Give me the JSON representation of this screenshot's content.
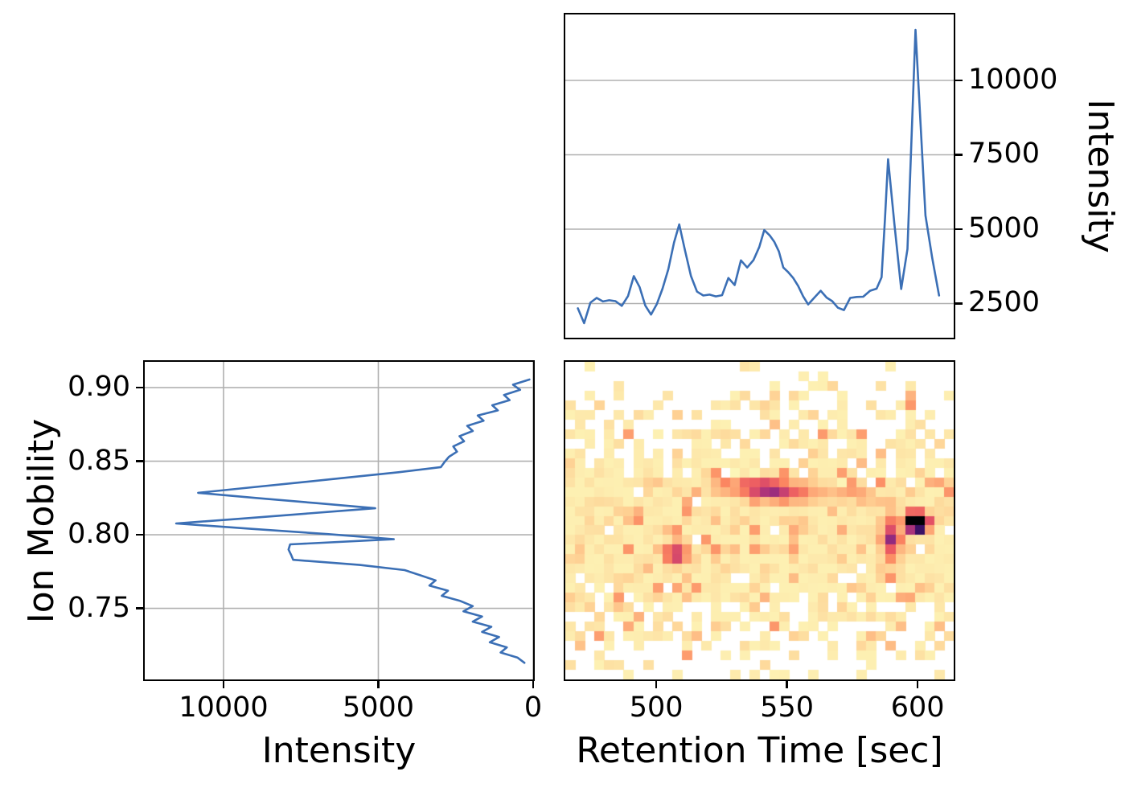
{
  "figure": {
    "background": "#ffffff",
    "line_color": "#3b6fb5",
    "grid_color": "#b0b0b0",
    "frame_color": "#000000",
    "tick_color": "#000000"
  },
  "chart_data": [
    {
      "id": "xic",
      "type": "line",
      "ylabel": "Intensity",
      "ylabel_side": "right",
      "grid": "horizontal",
      "legend": "none",
      "xlim": [
        465.2,
        613.8
      ],
      "ylim": [
        1351,
        12216
      ],
      "yticks": [
        2500,
        5000,
        7500,
        10000
      ],
      "ytick_labels": [
        "2500",
        "5000",
        "7500",
        "10000"
      ],
      "x": [
        470.0,
        472.4,
        474.8,
        477.2,
        479.6,
        482.0,
        484.4,
        486.8,
        489.2,
        491.4,
        493.6,
        495.8,
        498.0,
        500.2,
        502.4,
        504.6,
        506.8,
        508.8,
        511.0,
        513.3,
        515.6,
        518.0,
        520.4,
        522.8,
        525.2,
        527.6,
        530.0,
        532.4,
        534.8,
        537.2,
        539.4,
        541.3,
        543.4,
        545.2,
        546.9,
        548.6,
        550.5,
        552.4,
        554.3,
        556.2,
        558.1,
        560.4,
        562.9,
        565.2,
        567.3,
        569.5,
        571.8,
        574.2,
        576.7,
        579.2,
        581.8,
        584.3,
        586.2,
        587.5,
        588.7,
        591.1,
        593.7,
        596.1,
        599.2,
        603.0,
        605.6,
        608.2
      ],
      "y": [
        2340,
        1840,
        2530,
        2690,
        2570,
        2610,
        2580,
        2420,
        2750,
        3420,
        3060,
        2430,
        2130,
        2480,
        3000,
        3650,
        4550,
        5160,
        4280,
        3420,
        2900,
        2770,
        2800,
        2740,
        2780,
        3360,
        3120,
        3950,
        3710,
        3960,
        4400,
        4970,
        4790,
        4570,
        4250,
        3710,
        3550,
        3360,
        3090,
        2740,
        2470,
        2690,
        2930,
        2700,
        2580,
        2360,
        2280,
        2690,
        2720,
        2730,
        2930,
        3000,
        3380,
        5330,
        7350,
        5190,
        2990,
        4330,
        11700,
        5460,
        4030,
        2770
      ]
    },
    {
      "id": "mobilogram",
      "type": "line",
      "xlabel": "Intensity",
      "ylabel": "Ion Mobility",
      "grid": "both",
      "legend": "none",
      "xlim": [
        12545,
        0
      ],
      "ylim": [
        0.7017,
        0.9175
      ],
      "xticks": [
        10000,
        5000,
        0
      ],
      "xtick_labels": [
        "10000",
        "5000",
        "0"
      ],
      "yticks": [
        0.75,
        0.8,
        0.85,
        0.9
      ],
      "ytick_labels": [
        "0.75",
        "0.80",
        "0.85",
        "0.90"
      ],
      "x": [
        120,
        650,
        420,
        940,
        760,
        1320,
        1140,
        1790,
        1600,
        2130,
        1950,
        2380,
        2230,
        2580,
        2460,
        2720,
        2860,
        2980,
        4350,
        5950,
        7550,
        9200,
        10820,
        8950,
        7000,
        5100,
        7250,
        9400,
        11530,
        9050,
        6650,
        4500,
        7850,
        7900,
        7820,
        7750,
        5600,
        4150,
        3650,
        3150,
        3350,
        2750,
        2950,
        2350,
        1950,
        2250,
        1650,
        1950,
        1350,
        1650,
        1100,
        1400,
        850,
        1050,
        500,
        280
      ],
      "y": [
        0.9055,
        0.902,
        0.8985,
        0.895,
        0.8915,
        0.888,
        0.8845,
        0.881,
        0.8775,
        0.874,
        0.8705,
        0.867,
        0.8635,
        0.86,
        0.8565,
        0.853,
        0.8495,
        0.846,
        0.8425,
        0.839,
        0.8355,
        0.832,
        0.8285,
        0.825,
        0.8215,
        0.818,
        0.8145,
        0.811,
        0.8077,
        0.804,
        0.8005,
        0.797,
        0.7935,
        0.79,
        0.7865,
        0.783,
        0.7795,
        0.776,
        0.7725,
        0.769,
        0.7655,
        0.762,
        0.7585,
        0.755,
        0.7515,
        0.748,
        0.7445,
        0.741,
        0.7375,
        0.734,
        0.7305,
        0.727,
        0.7235,
        0.72,
        0.7165,
        0.713
      ]
    },
    {
      "id": "heatmap",
      "type": "heatmap",
      "xlabel": "Retention Time [sec]",
      "grid": "off",
      "xlim": [
        465.2,
        613.8
      ],
      "ylim": [
        0.7017,
        0.9175
      ],
      "xticks": [
        500,
        550,
        600
      ],
      "xtick_labels": [
        "500",
        "550",
        "600"
      ],
      "grid_size": {
        "cols": 40,
        "rows": 33
      },
      "colormap": "magma_r",
      "colormap_anchors": [
        [
          0.0,
          [
            0,
            0,
            4
          ]
        ],
        [
          0.125,
          [
            28,
            16,
            68
          ]
        ],
        [
          0.25,
          [
            81,
            18,
            124
          ]
        ],
        [
          0.375,
          [
            129,
            37,
            129
          ]
        ],
        [
          0.5,
          [
            183,
            55,
            121
          ]
        ],
        [
          0.625,
          [
            233,
            85,
            98
          ]
        ],
        [
          0.75,
          [
            252,
            137,
            97
          ]
        ],
        [
          0.875,
          [
            254,
            207,
            146
          ]
        ],
        [
          1.0,
          [
            252,
            253,
            191
          ]
        ]
      ],
      "empty_cell_color": "#ffffff",
      "noise": {
        "seed": 20240501,
        "center_mobility": 0.802,
        "sigma_mobility": 0.052,
        "max_density": 0.97,
        "base_value": 0.035,
        "value_jitter": 0.075,
        "hot_jitter": 0.12,
        "min_visible": 0.02
      },
      "blobs": [
        {
          "rt": 599.8,
          "mobility": 0.8085,
          "amplitude": 1.9,
          "sigma_rt": 2.6,
          "sigma_mobility": 0.0042
        },
        {
          "rt": 589.8,
          "mobility": 0.797,
          "amplitude": 0.4,
          "sigma_rt": 2.4,
          "sigma_mobility": 0.011
        },
        {
          "rt": 541.5,
          "mobility": 0.8315,
          "amplitude": 0.46,
          "sigma_rt": 5.0,
          "sigma_mobility": 0.0045
        },
        {
          "rt": 553.0,
          "mobility": 0.829,
          "amplitude": 0.26,
          "sigma_rt": 9.0,
          "sigma_mobility": 0.005
        },
        {
          "rt": 528.0,
          "mobility": 0.8335,
          "amplitude": 0.22,
          "sigma_rt": 5.0,
          "sigma_mobility": 0.004
        },
        {
          "rt": 507.5,
          "mobility": 0.7865,
          "amplitude": 0.46,
          "sigma_rt": 3.0,
          "sigma_mobility": 0.005
        },
        {
          "rt": 491.5,
          "mobility": 0.8125,
          "amplitude": 0.42,
          "sigma_rt": 1.5,
          "sigma_mobility": 0.0032
        },
        {
          "rt": 578.0,
          "mobility": 0.827,
          "amplitude": 0.15,
          "sigma_rt": 6.0,
          "sigma_mobility": 0.0045
        }
      ]
    }
  ]
}
